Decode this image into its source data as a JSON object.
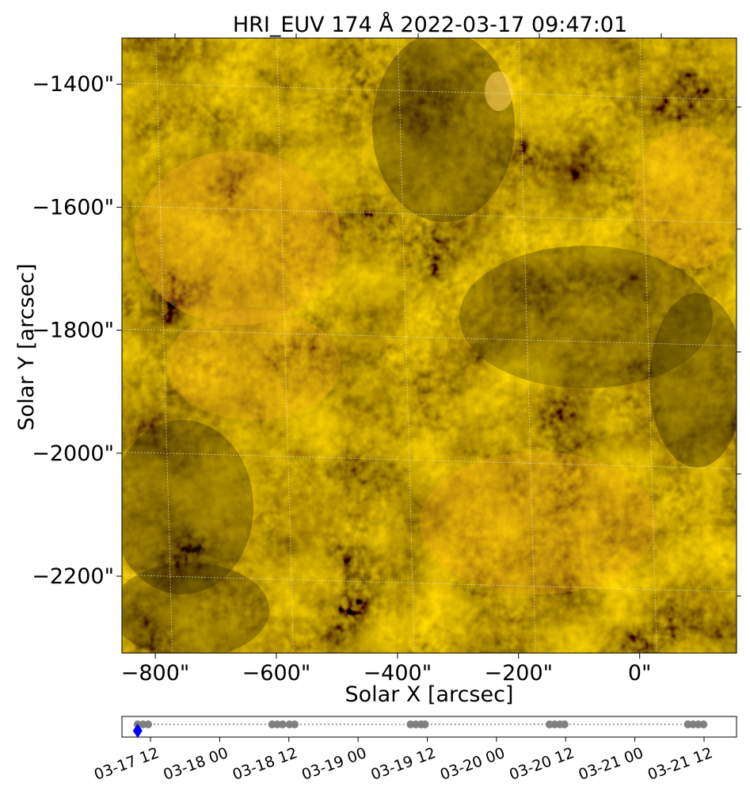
{
  "chart_data": [
    {
      "type": "heatmap",
      "title": "HRI_EUV 174 Å 2022-03-17 09:47:01",
      "xlabel": "Solar X [arcsec]",
      "ylabel": "Solar Y [arcsec]",
      "xlim": [
        -855,
        160
      ],
      "ylim": [
        -2325,
        -1325
      ],
      "x_ticks": [
        -800,
        -600,
        -400,
        -200,
        0
      ],
      "x_tick_labels": [
        "−800\"",
        "−600\"",
        "−400\"",
        "−200\"",
        "0\""
      ],
      "y_ticks": [
        -1400,
        -1600,
        -1800,
        -2000,
        -2200
      ],
      "y_tick_labels": [
        "−1400\"",
        "−1600\"",
        "−1800\"",
        "−2000\"",
        "−2200\""
      ],
      "grid": true,
      "colormap": [
        "#4a3500",
        "#7a5600",
        "#b98200",
        "#f0a700",
        "#ffbf2e"
      ],
      "brightness_description": "EUV 174 Å quiet-sun intensity, orange scale"
    },
    {
      "type": "scatter",
      "title": "",
      "xlabel": "",
      "ylabel": "",
      "x_range": [
        "2022-03-17 05:00",
        "2022-03-21 15:00"
      ],
      "x_tick_labels": [
        "03-17 12",
        "03-18 00",
        "03-18 12",
        "03-19 00",
        "03-19 12",
        "03-20 00",
        "03-20 12",
        "03-21 00",
        "03-21 12"
      ],
      "x_tick_hours": [
        12,
        24,
        36,
        48,
        60,
        72,
        84,
        96,
        108
      ],
      "series": [
        {
          "marker": "circle",
          "color": "#808080",
          "x_hours": [
            9.78,
            10.7,
            11.6,
            33.1,
            34.0,
            34.9,
            36.1,
            37.0,
            57.1,
            58.0,
            58.9,
            59.6,
            81.2,
            82.1,
            83.0,
            83.8,
            105.2,
            106.1,
            107.0,
            107.9
          ]
        },
        {
          "marker": "diamond",
          "color": "#0000ff",
          "x_hours": [
            9.78
          ]
        }
      ]
    }
  ]
}
